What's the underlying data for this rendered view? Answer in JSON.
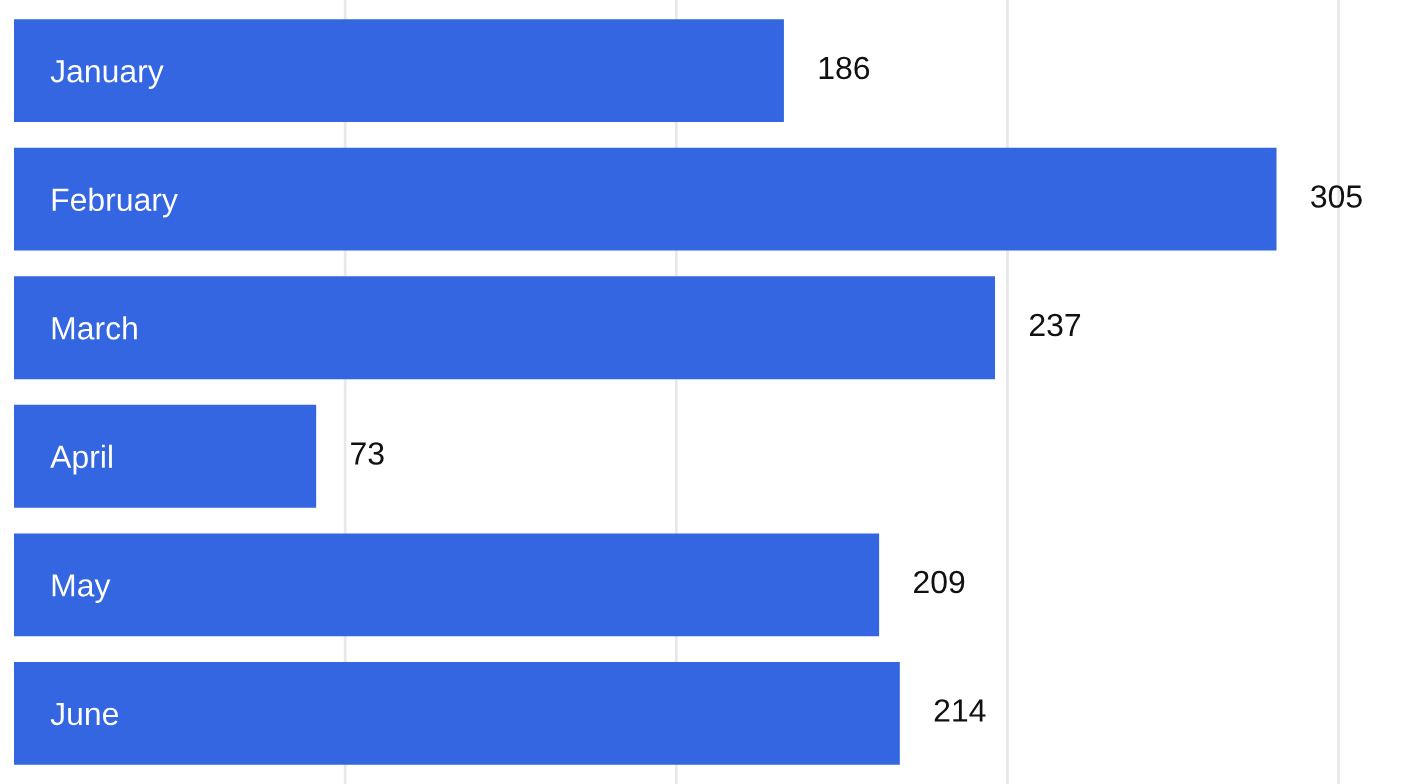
{
  "chart_data": {
    "type": "bar",
    "orientation": "horizontal",
    "categories": [
      "January",
      "February",
      "March",
      "April",
      "May",
      "June"
    ],
    "values": [
      186,
      305,
      237,
      73,
      209,
      214
    ],
    "color": "#3366e0",
    "data_labels": true,
    "xticks": [
      {
        "value": 80,
        "label": null
      },
      {
        "value": 160,
        "label": null
      },
      {
        "value": 240,
        "label": null
      },
      {
        "value": 320,
        "label": null
      }
    ],
    "grid": "x",
    "tick_labels": "y"
  }
}
